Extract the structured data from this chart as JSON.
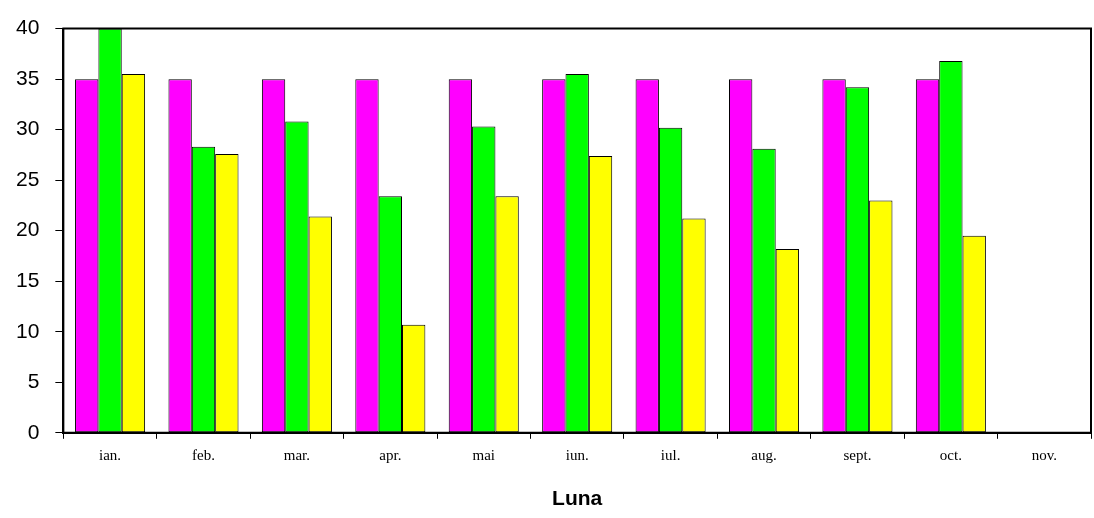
{
  "chart_data": {
    "type": "bar",
    "xlabel": "Luna",
    "categories": [
      "ian.",
      "feb.",
      "mar.",
      "apr.",
      "mai",
      "iun.",
      "iul.",
      "aug.",
      "sept.",
      "oct.",
      "nov."
    ],
    "series": [
      {
        "color": "#ff00ff",
        "values": [
          35,
          35,
          35,
          35,
          35,
          35,
          35,
          35,
          35,
          35,
          null
        ]
      },
      {
        "color": "#00ff00",
        "values": [
          40,
          28.3,
          30.8,
          23.4,
          30.3,
          35.5,
          30.2,
          28.1,
          34.2,
          36.8,
          null
        ]
      },
      {
        "color": "#ffff00",
        "values": [
          35.5,
          27.6,
          21.4,
          10.7,
          23.4,
          27.4,
          21.2,
          18.2,
          23.0,
          19.5,
          null
        ]
      }
    ],
    "ylim": [
      0,
      40
    ],
    "yticks": [
      0,
      5,
      10,
      15,
      20,
      25,
      30,
      35,
      40
    ],
    "grid": false,
    "legend": false
  }
}
